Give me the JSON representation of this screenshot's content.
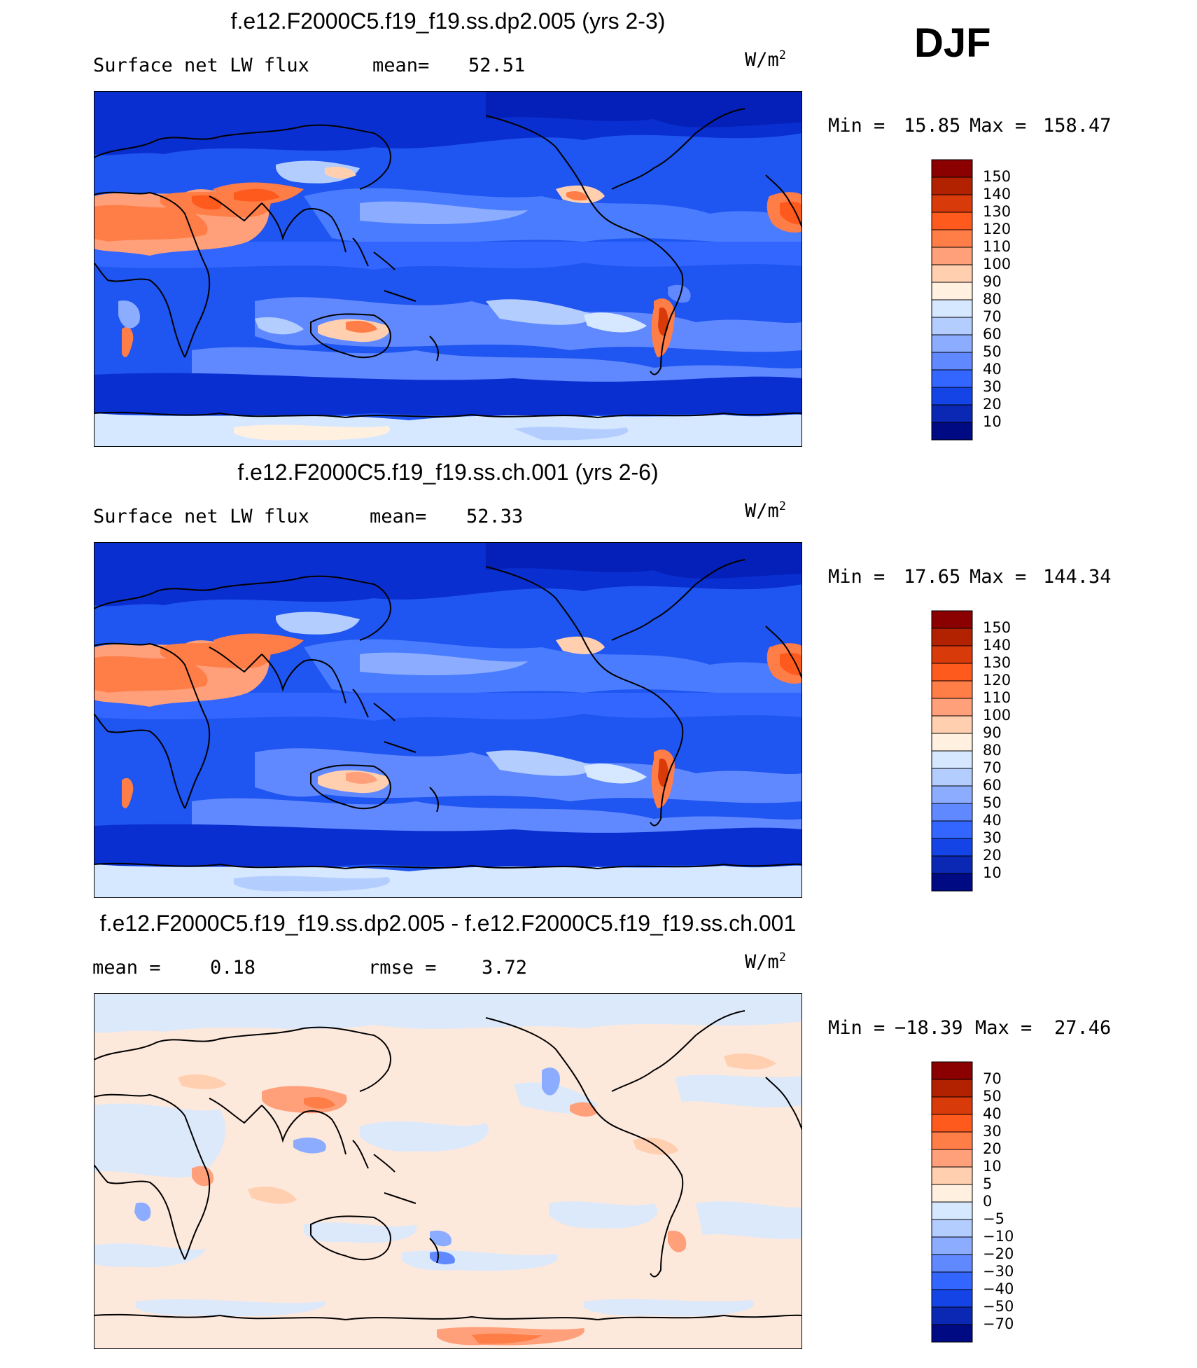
{
  "season": "DJF",
  "panels": [
    {
      "title": "f.e12.F2000C5.f19_f19.ss.dp2.005 (yrs 2-3)",
      "left_label": "Surface net LW flux",
      "stat_label": "mean=",
      "stat_value": "52.51",
      "units_main": "W/m",
      "units_exp": "2",
      "min_label": "Min =",
      "min_value": "15.85",
      "max_label": "Max =",
      "max_value": "158.47",
      "colorbar_labels": [
        "150",
        "140",
        "130",
        "120",
        "110",
        "100",
        "90",
        "80",
        "70",
        "60",
        "50",
        "40",
        "30",
        "20",
        "10"
      ]
    },
    {
      "title": "f.e12.F2000C5.f19_f19.ss.ch.001 (yrs 2-6)",
      "left_label": "Surface net LW flux",
      "stat_label": "mean=",
      "stat_value": "52.33",
      "units_main": "W/m",
      "units_exp": "2",
      "min_label": "Min =",
      "min_value": "17.65",
      "max_label": "Max =",
      "max_value": "144.34",
      "colorbar_labels": [
        "150",
        "140",
        "130",
        "120",
        "110",
        "100",
        "90",
        "80",
        "70",
        "60",
        "50",
        "40",
        "30",
        "20",
        "10"
      ]
    },
    {
      "title": "f.e12.F2000C5.f19_f19.ss.dp2.005 - f.e12.F2000C5.f19_f19.ss.ch.001",
      "left_label": "mean =",
      "left_value": "0.18",
      "stat_label": "rmse =",
      "stat_value": "3.72",
      "units_main": "W/m",
      "units_exp": "2",
      "min_label": "Min =",
      "min_value": "−18.39",
      "max_label": "Max =",
      "max_value": "27.46",
      "colorbar_labels": [
        "70",
        "50",
        "40",
        "30",
        "20",
        "10",
        "5",
        "0",
        "−5",
        "−10",
        "−20",
        "−30",
        "−40",
        "−50",
        "−70"
      ]
    }
  ],
  "colors": {
    "abs_scale": [
      "#8b0000",
      "#b22200",
      "#d93a0a",
      "#ff5a1e",
      "#ff7d47",
      "#ffa07a",
      "#ffcfb0",
      "#fff0e0",
      "#d6e8ff",
      "#b4cdff",
      "#8cadff",
      "#6189ff",
      "#3366ff",
      "#1444e6",
      "#0a28b4",
      "#000a82"
    ],
    "diff_scale": [
      "#8b0000",
      "#b22200",
      "#d93a0a",
      "#ff5a1e",
      "#ff7d47",
      "#ffa07a",
      "#ffcfb0",
      "#fff0e0",
      "#d6e8ff",
      "#b4cdff",
      "#8cadff",
      "#6189ff",
      "#3366ff",
      "#1444e6",
      "#0a28b4",
      "#000a82"
    ],
    "diff_background": "#fde8dc",
    "diff_blue_background": "#dbe9fb"
  },
  "chart_data": [
    {
      "type": "heatmap",
      "title": "f.e12.F2000C5.f19_f19.ss.dp2.005 (yrs 2-3)",
      "variable": "Surface net LW flux",
      "units": "W/m2",
      "mean": 52.51,
      "min": 15.85,
      "max": 158.47,
      "contour_levels": [
        10,
        20,
        30,
        40,
        50,
        60,
        70,
        80,
        90,
        100,
        110,
        120,
        130,
        140,
        150
      ],
      "projection": "cylindrical equidistant, Pacific-centered"
    },
    {
      "type": "heatmap",
      "title": "f.e12.F2000C5.f19_f19.ss.ch.001 (yrs 2-6)",
      "variable": "Surface net LW flux",
      "units": "W/m2",
      "mean": 52.33,
      "min": 17.65,
      "max": 144.34,
      "contour_levels": [
        10,
        20,
        30,
        40,
        50,
        60,
        70,
        80,
        90,
        100,
        110,
        120,
        130,
        140,
        150
      ],
      "projection": "cylindrical equidistant, Pacific-centered"
    },
    {
      "type": "heatmap",
      "title": "f.e12.F2000C5.f19_f19.ss.dp2.005 - f.e12.F2000C5.f19_f19.ss.ch.001",
      "units": "W/m2",
      "mean": 0.18,
      "rmse": 3.72,
      "min": -18.39,
      "max": 27.46,
      "contour_levels": [
        -70,
        -50,
        -40,
        -30,
        -20,
        -10,
        -5,
        0,
        5,
        10,
        20,
        30,
        40,
        50,
        70
      ],
      "projection": "cylindrical equidistant, Pacific-centered"
    }
  ]
}
